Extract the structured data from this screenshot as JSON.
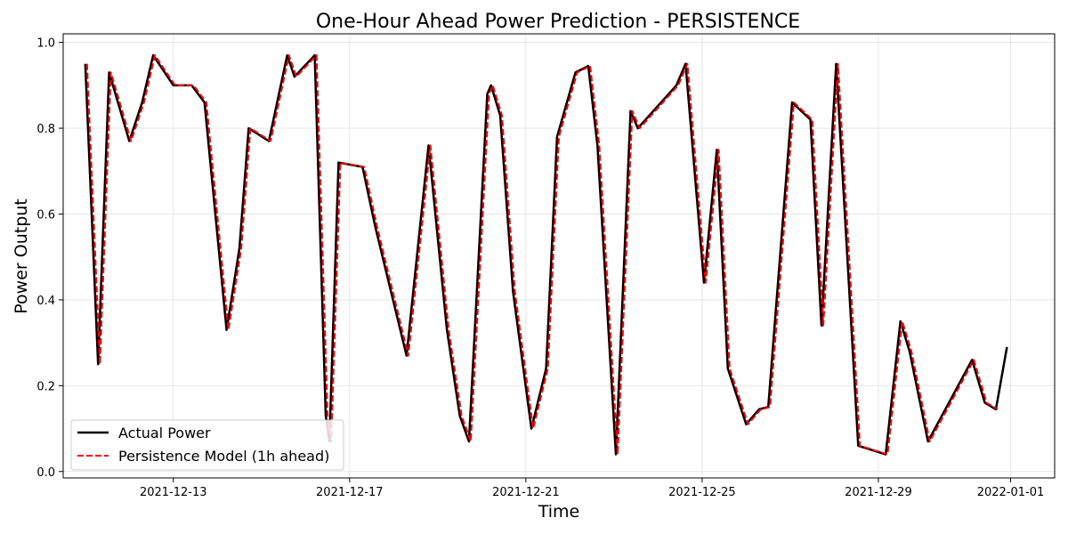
{
  "chart_data": {
    "type": "line",
    "title": "One-Hour Ahead Power Prediction - PERSISTENCE",
    "xlabel": "Time",
    "ylabel": "Power Output",
    "xlim": [
      "2021-12-10T12:00",
      "2022-01-02T00:00"
    ],
    "ylim": [
      -0.015,
      1.02
    ],
    "x_ticks": [
      "2021-12-13",
      "2021-12-17",
      "2021-12-21",
      "2021-12-25",
      "2021-12-29",
      "2022-01-01"
    ],
    "y_ticks": [
      "0.0",
      "0.2",
      "0.4",
      "0.6",
      "0.8",
      "1.0"
    ],
    "grid": true,
    "legend_position": "lower-left",
    "series": [
      {
        "name": "Actual Power",
        "color": "#000000",
        "style": "solid",
        "points": [
          [
            "2021-12-11T00:00",
            0.95
          ],
          [
            "2021-12-11T07:00",
            0.25
          ],
          [
            "2021-12-11T13:00",
            0.93
          ],
          [
            "2021-12-12T00:00",
            0.77
          ],
          [
            "2021-12-12T07:00",
            0.86
          ],
          [
            "2021-12-12T13:00",
            0.97
          ],
          [
            "2021-12-13T00:00",
            0.9
          ],
          [
            "2021-12-13T10:00",
            0.9
          ],
          [
            "2021-12-13T17:00",
            0.86
          ],
          [
            "2021-12-14T05:00",
            0.33
          ],
          [
            "2021-12-14T12:00",
            0.52
          ],
          [
            "2021-12-14T17:00",
            0.8
          ],
          [
            "2021-12-15T04:00",
            0.77
          ],
          [
            "2021-12-15T14:00",
            0.97
          ],
          [
            "2021-12-15T18:00",
            0.92
          ],
          [
            "2021-12-16T05:00",
            0.97
          ],
          [
            "2021-12-16T11:00",
            0.13
          ],
          [
            "2021-12-16T13:00",
            0.07
          ],
          [
            "2021-12-16T18:00",
            0.72
          ],
          [
            "2021-12-17T07:00",
            0.71
          ],
          [
            "2021-12-17T14:00",
            0.57
          ],
          [
            "2021-12-18T07:00",
            0.27
          ],
          [
            "2021-12-18T19:00",
            0.76
          ],
          [
            "2021-12-19T05:00",
            0.33
          ],
          [
            "2021-12-19T12:00",
            0.13
          ],
          [
            "2021-12-19T17:00",
            0.07
          ],
          [
            "2021-12-20T03:00",
            0.88
          ],
          [
            "2021-12-20T05:00",
            0.9
          ],
          [
            "2021-12-20T10:00",
            0.83
          ],
          [
            "2021-12-20T17:00",
            0.42
          ],
          [
            "2021-12-21T03:00",
            0.1
          ],
          [
            "2021-12-21T11:00",
            0.24
          ],
          [
            "2021-12-21T17:00",
            0.78
          ],
          [
            "2021-12-22T03:00",
            0.93
          ],
          [
            "2021-12-22T10:00",
            0.945
          ],
          [
            "2021-12-22T15:00",
            0.76
          ],
          [
            "2021-12-23T01:00",
            0.04
          ],
          [
            "2021-12-23T09:00",
            0.84
          ],
          [
            "2021-12-23T13:00",
            0.8
          ],
          [
            "2021-12-24T10:00",
            0.9
          ],
          [
            "2021-12-24T15:00",
            0.95
          ],
          [
            "2021-12-25T01:00",
            0.44
          ],
          [
            "2021-12-25T08:00",
            0.75
          ],
          [
            "2021-12-25T14:00",
            0.24
          ],
          [
            "2021-12-26T00:00",
            0.11
          ],
          [
            "2021-12-26T07:00",
            0.145
          ],
          [
            "2021-12-26T12:00",
            0.15
          ],
          [
            "2021-12-27T01:00",
            0.86
          ],
          [
            "2021-12-27T11:00",
            0.82
          ],
          [
            "2021-12-27T17:00",
            0.34
          ],
          [
            "2021-12-28T01:00",
            0.95
          ],
          [
            "2021-12-28T13:00",
            0.06
          ],
          [
            "2021-12-29T04:00",
            0.04
          ],
          [
            "2021-12-29T12:00",
            0.35
          ],
          [
            "2021-12-29T17:00",
            0.28
          ],
          [
            "2021-12-30T03:00",
            0.07
          ],
          [
            "2021-12-31T03:00",
            0.26
          ],
          [
            "2021-12-31T10:00",
            0.16
          ],
          [
            "2021-12-31T16:00",
            0.145
          ],
          [
            "2021-12-31T22:00",
            0.29
          ]
        ]
      },
      {
        "name": "Persistence Model (1h ahead)",
        "color": "#ff0000",
        "style": "dashed",
        "lag_hours": 1
      }
    ]
  }
}
